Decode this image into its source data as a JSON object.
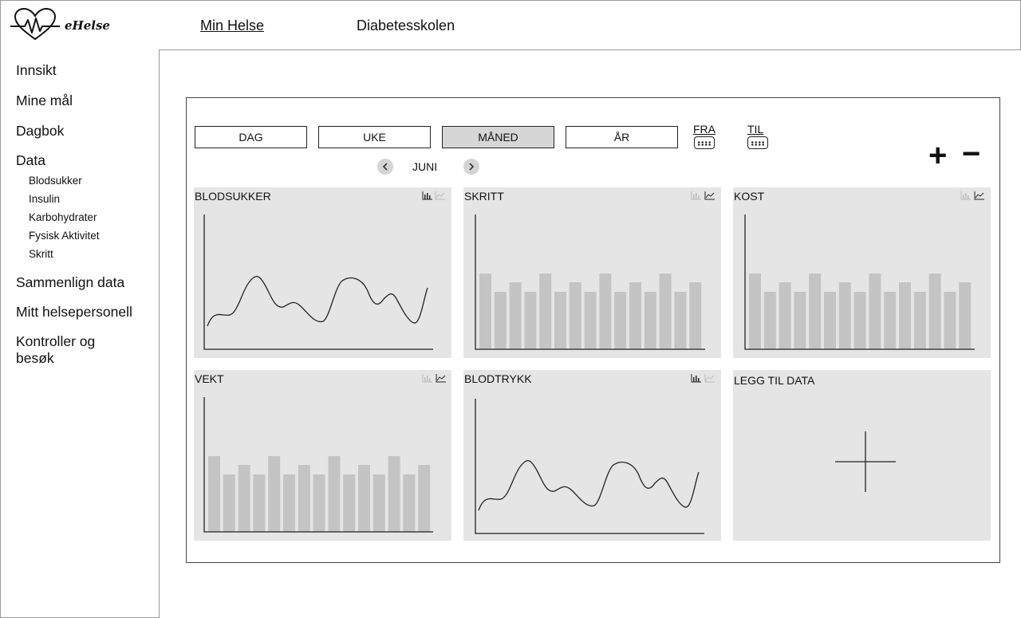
{
  "header": {
    "brand": "eHelse",
    "nav": [
      {
        "label": "Min Helse",
        "active": true
      },
      {
        "label": "Diabetesskolen",
        "active": false
      }
    ]
  },
  "sidebar": {
    "items": [
      {
        "label": "Innsikt"
      },
      {
        "label": "Mine mål"
      },
      {
        "label": "Dagbok"
      },
      {
        "label": "Data",
        "children": [
          "Blodsukker",
          "Insulin",
          "Karbohydrater",
          "Fysisk Aktivitet",
          "Skritt"
        ]
      },
      {
        "label": "Sammenlign data"
      },
      {
        "label": "Mitt helsepersonell"
      },
      {
        "label": "Kontroller og besøk"
      }
    ]
  },
  "controls": {
    "periods": [
      "DAG",
      "UKE",
      "MÅNED",
      "ÅR"
    ],
    "active_period": "MÅNED",
    "from_label": "FRA",
    "to_label": "TIL",
    "month": "JUNI",
    "zoom_in": "+",
    "zoom_out": "−"
  },
  "cards": [
    {
      "title": "BLODSUKKER",
      "type": "line",
      "active_view": "bar"
    },
    {
      "title": "SKRITT",
      "type": "bar",
      "active_view": "line"
    },
    {
      "title": "KOST",
      "type": "bar",
      "active_view": "line"
    },
    {
      "title": "VEKT",
      "type": "bar",
      "active_view": "line"
    },
    {
      "title": "BLODTRYKK",
      "type": "line",
      "active_view": "bar"
    },
    {
      "title": "LEGG TIL DATA",
      "type": "add"
    }
  ],
  "colors": {
    "card_bg": "#e5e5e5",
    "bar": "#c4c4c4",
    "active_button": "#d6d6d6",
    "border": "#222222"
  }
}
